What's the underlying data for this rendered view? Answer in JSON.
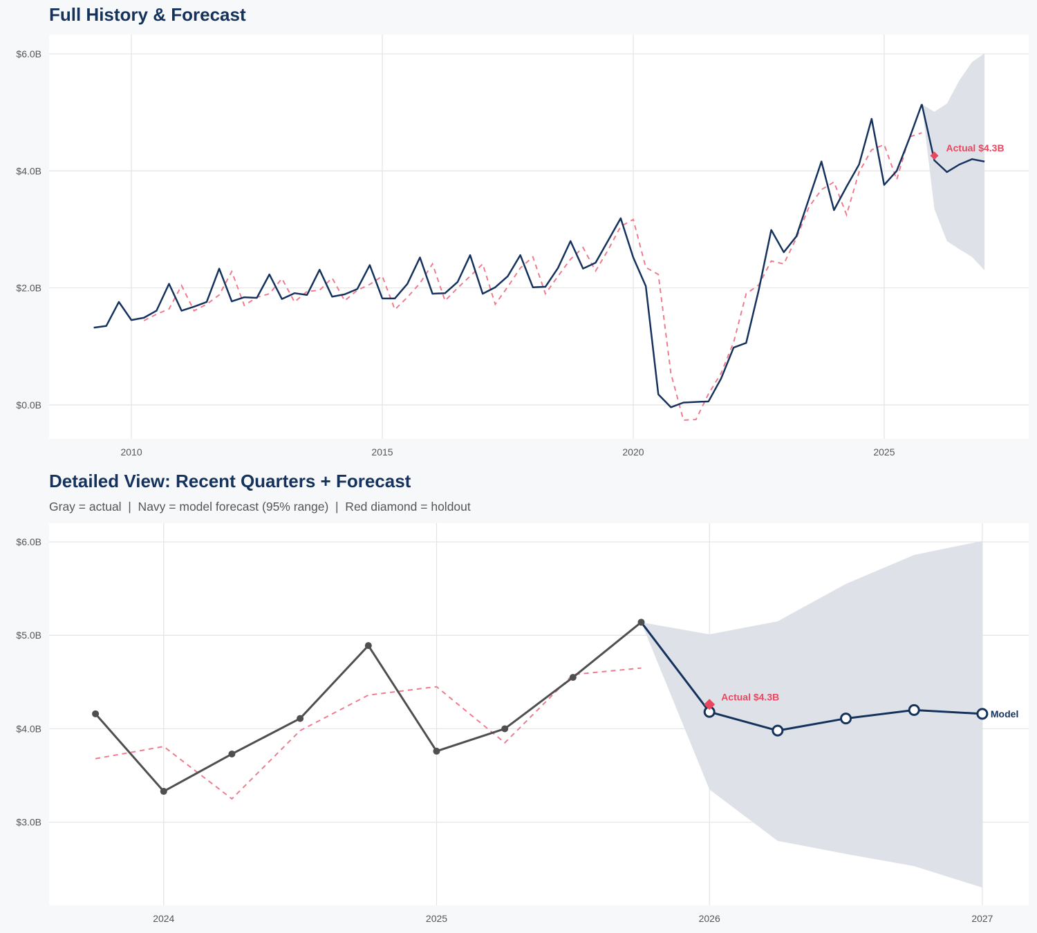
{
  "colors": {
    "navy": "#14325c",
    "actual_gray": "#4f4f4f",
    "fitted_red": "#f07b8e",
    "holdout_red": "#e8475f",
    "band": "#dce0e7",
    "grid": "#e3e3e3"
  },
  "chart_data": [
    {
      "type": "line",
      "title": "Full History & Forecast",
      "xlim": [
        2008.36,
        2027.88
      ],
      "ylim": [
        -0.58,
        6.33
      ],
      "x_ticks": [
        2010,
        2015,
        2020,
        2025
      ],
      "x_tick_labels": [
        "2010",
        "2015",
        "2020",
        "2025"
      ],
      "y_ticks": [
        0,
        2,
        4,
        6
      ],
      "y_tick_labels": [
        "$0.0B",
        "$2.0B",
        "$4.0B",
        "$6.0B"
      ],
      "grid": true,
      "actual": {
        "x_start": 2009.25,
        "x_step": 0.25,
        "values": [
          1.32,
          1.35,
          1.76,
          1.45,
          1.49,
          1.61,
          2.07,
          1.61,
          1.68,
          1.76,
          2.33,
          1.77,
          1.84,
          1.83,
          2.23,
          1.81,
          1.91,
          1.88,
          2.31,
          1.85,
          1.89,
          1.98,
          2.39,
          1.82,
          1.82,
          2.07,
          2.52,
          1.9,
          1.91,
          2.1,
          2.56,
          1.9,
          2.01,
          2.2,
          2.56,
          2.01,
          2.02,
          2.34,
          2.8,
          2.33,
          2.43,
          2.81,
          3.19,
          2.52,
          2.03,
          0.18,
          -0.04,
          0.04,
          0.05,
          0.06,
          0.45,
          0.98,
          1.06,
          1.96,
          2.99,
          2.61,
          2.88,
          3.52,
          4.16,
          3.33,
          3.73,
          4.11,
          4.89,
          3.76,
          4.0,
          4.55,
          5.14
        ]
      },
      "fitted": {
        "x_start": 2010.25,
        "x_step": 0.25,
        "values": [
          1.44,
          1.55,
          1.64,
          2.04,
          1.61,
          1.72,
          1.88,
          2.28,
          1.7,
          1.84,
          1.9,
          2.16,
          1.76,
          1.94,
          1.96,
          2.17,
          1.78,
          1.96,
          2.06,
          2.2,
          1.63,
          1.84,
          2.08,
          2.41,
          1.78,
          2.0,
          2.2,
          2.41,
          1.72,
          2.02,
          2.34,
          2.53,
          1.9,
          2.2,
          2.49,
          2.69,
          2.29,
          2.65,
          3.05,
          3.17,
          2.35,
          2.23,
          0.54,
          -0.26,
          -0.25,
          0.19,
          0.54,
          1.07,
          1.9,
          2.05,
          2.46,
          2.41,
          2.85,
          3.38,
          3.68,
          3.81,
          3.25,
          3.98,
          4.36,
          4.45,
          3.85,
          4.58,
          4.65
        ]
      },
      "forecast": {
        "x": [
          2026.0,
          2026.25,
          2026.5,
          2026.75,
          2027.0
        ],
        "values": [
          4.18,
          3.98,
          4.11,
          4.2,
          4.16
        ]
      },
      "band": {
        "x": [
          2025.75,
          2026.0,
          2026.25,
          2026.5,
          2026.75,
          2027.0
        ],
        "lower": [
          5.14,
          3.35,
          2.8,
          2.66,
          2.53,
          2.3
        ],
        "upper": [
          5.14,
          5.01,
          5.15,
          5.55,
          5.86,
          6.01
        ]
      },
      "holdout": {
        "x": 2026.0,
        "value": 4.26,
        "label": "Actual $4.3B"
      }
    },
    {
      "type": "line",
      "title": "Detailed View: Recent Quarters + Forecast",
      "subtitle": "Gray = actual  |  Navy = model forecast (95% range)  |  Red diamond = holdout",
      "xlim": [
        2023.58,
        2027.17
      ],
      "ylim": [
        2.11,
        6.2
      ],
      "x_ticks": [
        2024,
        2025,
        2026,
        2027
      ],
      "x_tick_labels": [
        "2024",
        "2025",
        "2026",
        "2027"
      ],
      "y_ticks": [
        3,
        4,
        5,
        6
      ],
      "y_tick_labels": [
        "$3.0B",
        "$4.0B",
        "$5.0B",
        "$6.0B"
      ],
      "grid": true,
      "actual": {
        "x_start": 2023.75,
        "x_step": 0.25,
        "values": [
          4.16,
          3.33,
          3.73,
          4.11,
          4.89,
          3.76,
          4.0,
          4.55,
          5.14
        ]
      },
      "fitted": {
        "x_start": 2023.75,
        "x_step": 0.25,
        "values": [
          3.68,
          3.81,
          3.25,
          3.98,
          4.36,
          4.45,
          3.85,
          4.58,
          4.65
        ]
      },
      "forecast": {
        "x": [
          2026.0,
          2026.25,
          2026.5,
          2026.75,
          2027.0
        ],
        "values": [
          4.18,
          3.98,
          4.11,
          4.2,
          4.16
        ],
        "label": "Model"
      },
      "band": {
        "x": [
          2025.75,
          2026.0,
          2026.25,
          2026.5,
          2026.75,
          2027.0
        ],
        "lower": [
          5.14,
          3.35,
          2.8,
          2.66,
          2.53,
          2.3
        ],
        "upper": [
          5.14,
          5.01,
          5.15,
          5.55,
          5.86,
          6.01
        ]
      },
      "holdout": {
        "x": 2026.0,
        "value": 4.26,
        "label": "Actual $4.3B"
      }
    }
  ]
}
